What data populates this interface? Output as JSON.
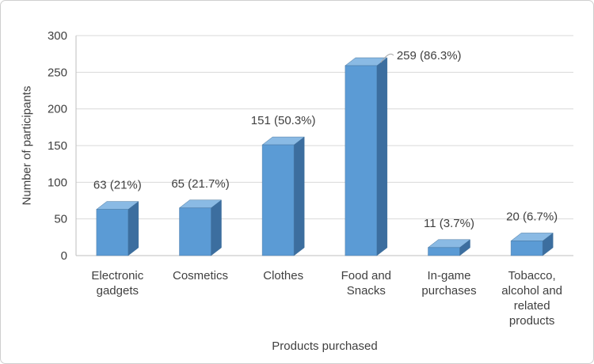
{
  "chart_data": {
    "type": "bar",
    "style": "3d-bar",
    "title": "",
    "xlabel": "Products purchased",
    "ylabel": "Number of participants",
    "categories": [
      "Electronic gadgets",
      "Cosmetics",
      "Clothes",
      "Food and Snacks",
      "In-game purchases",
      "Tobacco, alcohol and related products"
    ],
    "category_lines": [
      [
        "Electronic",
        "gadgets"
      ],
      [
        "Cosmetics"
      ],
      [
        "Clothes"
      ],
      [
        "Food and",
        "Snacks"
      ],
      [
        "In-game",
        "purchases"
      ],
      [
        "Tobacco,",
        "alcohol and",
        "related",
        "products"
      ]
    ],
    "values": [
      63,
      65,
      151,
      259,
      11,
      20
    ],
    "data_labels": [
      "63 (21%)",
      "65 (21.7%)",
      "151 (50.3%)",
      "259 (86.3%)",
      "11 (3.7%)",
      "20 (6.7%)"
    ],
    "y_ticks": [
      0,
      50,
      100,
      150,
      200,
      250,
      300
    ],
    "ylim": [
      0,
      300
    ],
    "grid": "horizontal",
    "legend": "none",
    "colors": {
      "bar_front": "#5B9BD5",
      "bar_top": "#8ABAE4",
      "bar_side": "#3C6E9F",
      "bar_edge": "#41719C",
      "grid_line": "#D9D9D9",
      "axis_line": "#BFBFBF",
      "text": "#404040",
      "leader_line": "#A6A6A6"
    }
  }
}
